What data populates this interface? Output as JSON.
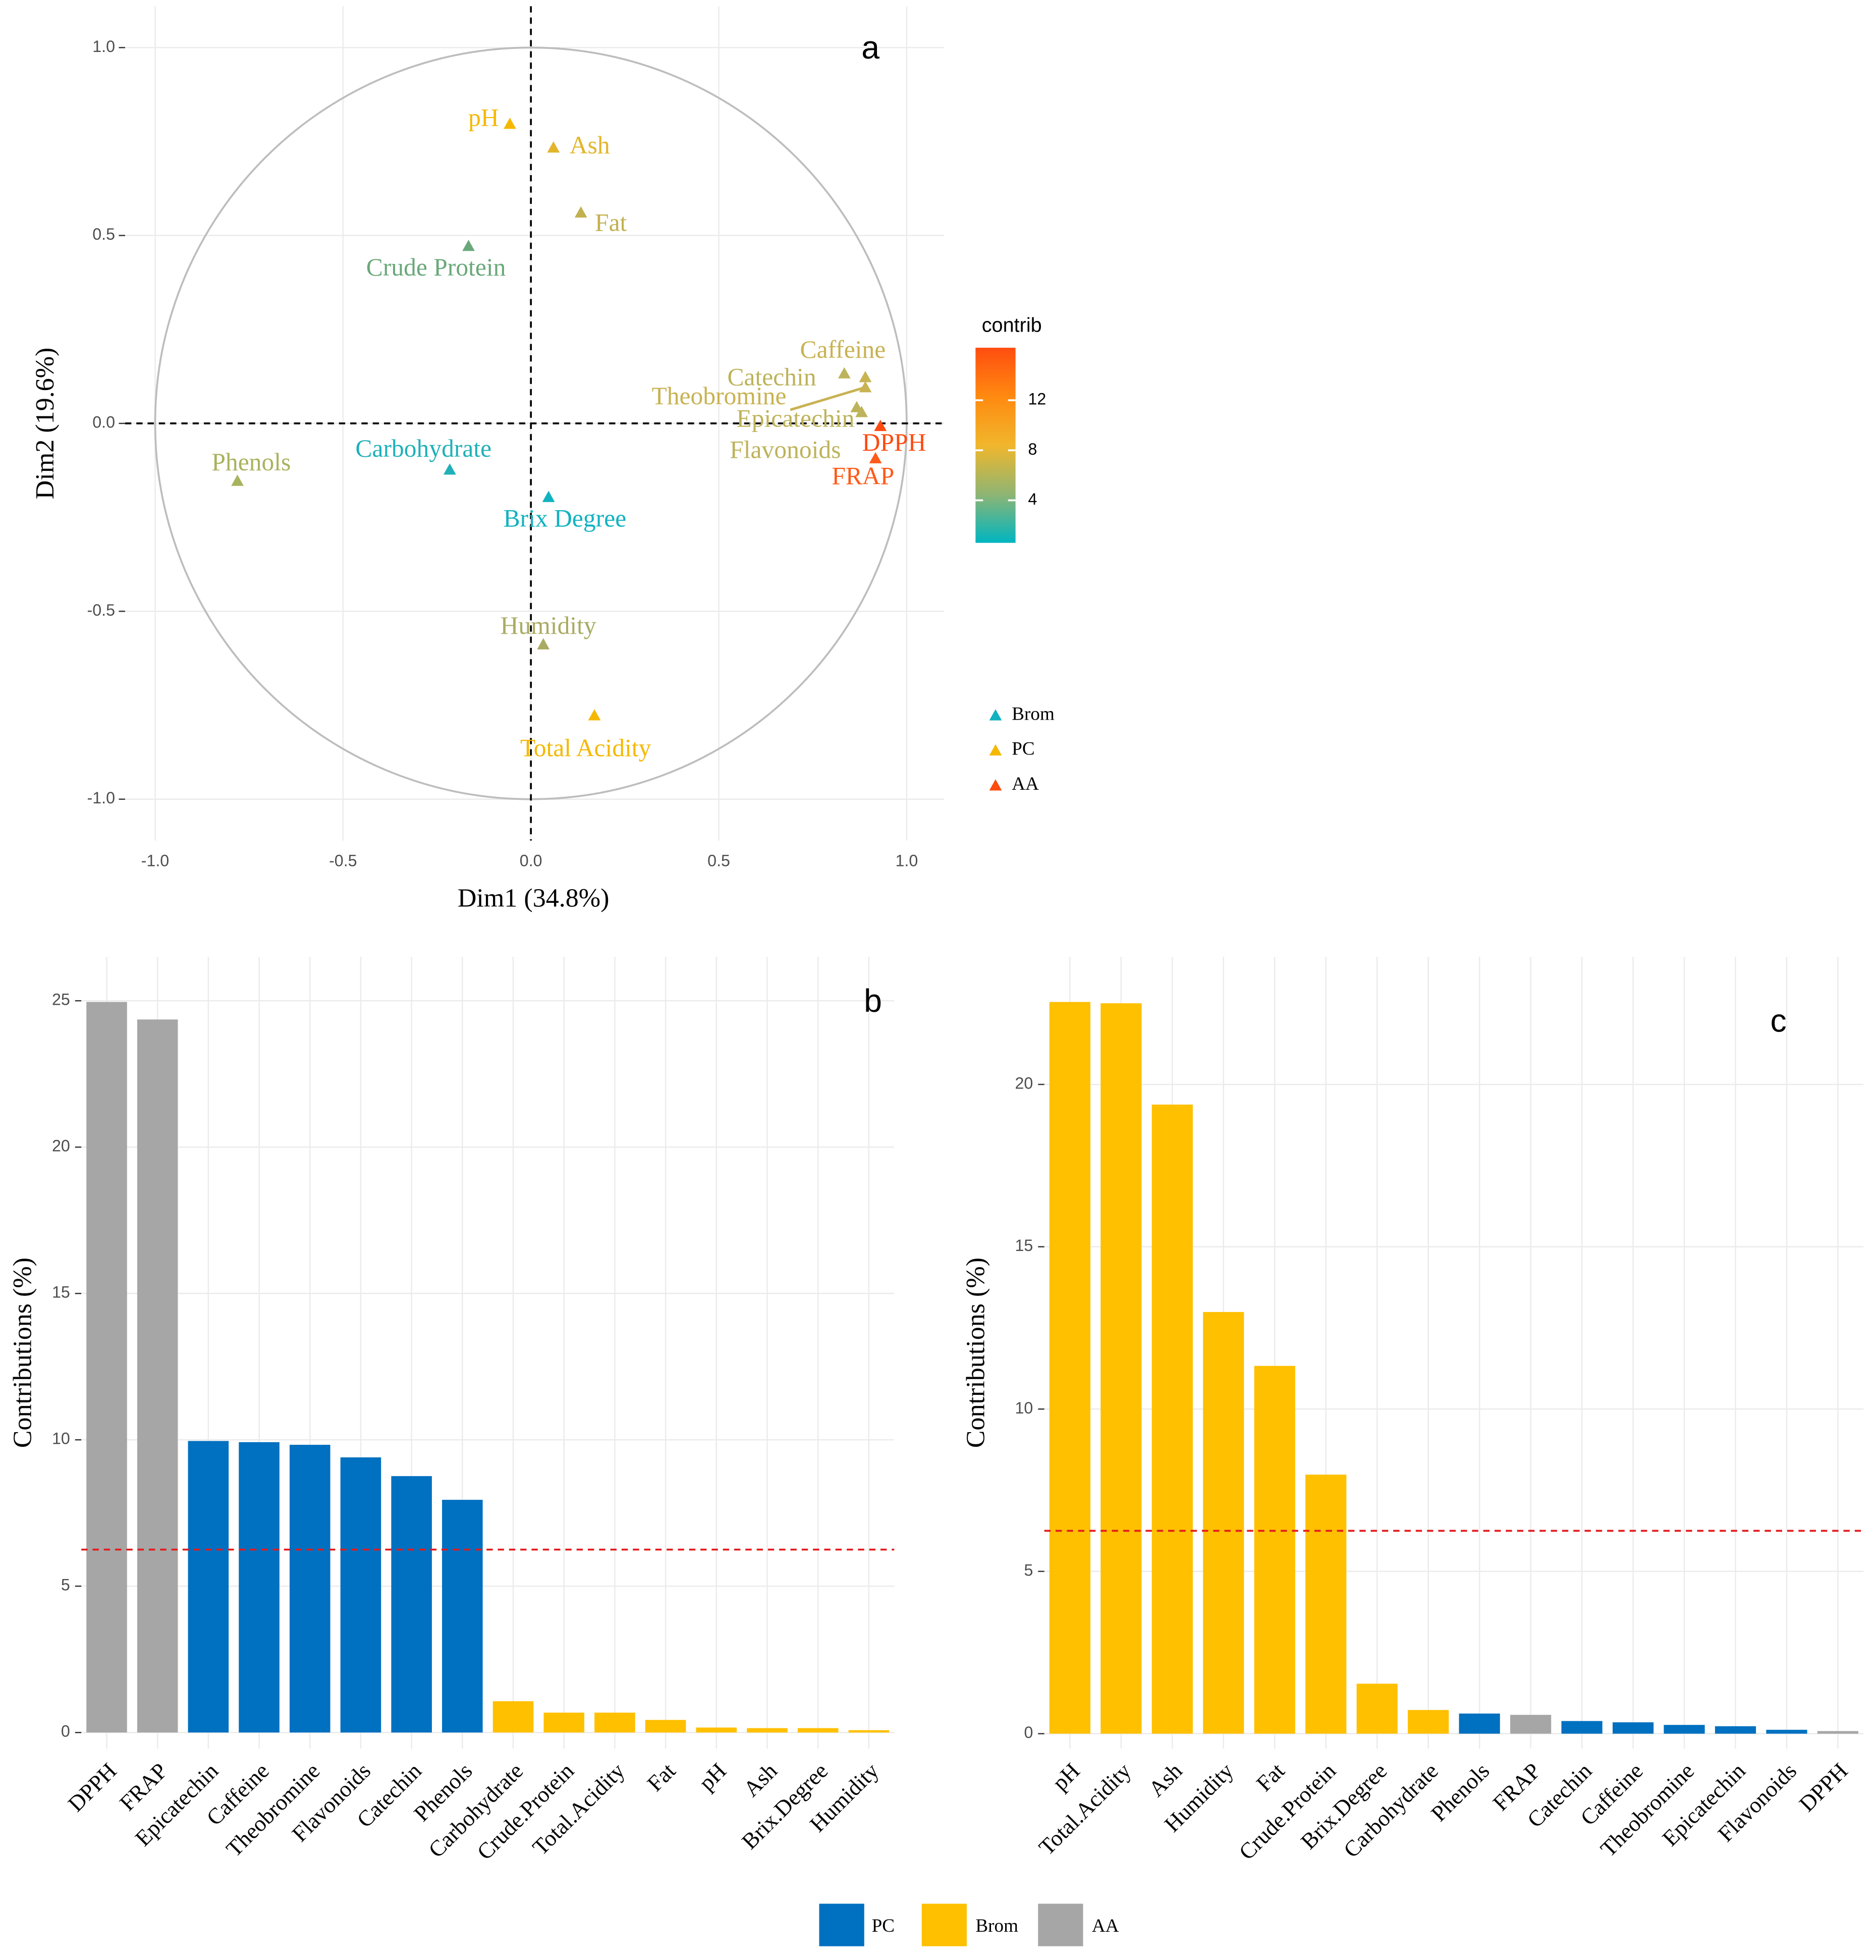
{
  "chart_data": [
    {
      "type": "scatter",
      "panel_label": "a",
      "xlabel": "Dim1 (34.8%)",
      "ylabel": "Dim2 (19.6%)",
      "xlim": [
        -1.08,
        1.1
      ],
      "ylim": [
        -1.11,
        1.11
      ],
      "xticks": [
        {
          "value": -1,
          "label": "-1.0"
        },
        -0.5,
        {
          "value": 0,
          "label": "0.0"
        },
        0.5,
        {
          "value": 1,
          "label": "1.0"
        }
      ],
      "yticks": [
        {
          "value": -1,
          "label": "-1.0"
        },
        -0.5,
        {
          "value": 0,
          "label": "0.0"
        },
        0.5,
        {
          "value": 1,
          "label": "1.0"
        }
      ],
      "labels": [
        "pH",
        "Ash",
        "Fat",
        "Crude Protein",
        "Caffeine",
        "Catechin",
        "Theobromine",
        "Epicatechin",
        "Flavonoids",
        "DPPH",
        "FRAP",
        "Phenols",
        "Carbohydrate",
        "Brix Degree",
        "Humidity",
        "Total Acidity"
      ],
      "x": [
        -0.056,
        0.06,
        0.133,
        -0.166,
        0.89,
        0.834,
        0.89,
        0.867,
        0.88,
        0.93,
        0.917,
        -0.781,
        -0.216,
        0.047,
        0.033,
        0.169
      ],
      "y": [
        0.797,
        0.734,
        0.561,
        0.472,
        0.123,
        0.133,
        0.096,
        0.043,
        0.03,
        -0.007,
        -0.093,
        -0.153,
        -0.123,
        -0.196,
        -0.588,
        -0.777
      ],
      "colors": [
        "#f5b800",
        "#e2b52a",
        "#c2b150",
        "#6aa87a",
        "#c8b252",
        "#bdb35a",
        "#c8b252",
        "#bdb35a",
        "#bdb35a",
        "#ff4a10",
        "#ff5a18",
        "#a9b25e",
        "#20b0b8",
        "#10b2c0",
        "#a9ab62",
        "#f5b800"
      ],
      "colorbar": {
        "title": "contrib",
        "lim": [
          0.6,
          16.2
        ],
        "ticks": [
          4,
          8,
          12
        ],
        "colors": [
          "#00b5c0",
          "#8fb573",
          "#f0b62c",
          "#ff8a10",
          "#ff4d10"
        ]
      },
      "shape_legend": [
        {
          "name": "Brom",
          "color": "#10b2c0"
        },
        {
          "name": "PC",
          "color": "#f5b800"
        },
        {
          "name": "AA",
          "color": "#ff4a10"
        }
      ]
    },
    {
      "type": "bar",
      "panel_label": "b",
      "ylabel": "Contributions (%)",
      "categories": [
        "DPPH",
        "FRAP",
        "Epicatechin",
        "Caffeine",
        "Theobromine",
        "Flavonoids",
        "Catechin",
        "Phenols",
        "Carbohydrate",
        "Crude.Protein",
        "Total.Acidity",
        "Fat",
        "pH",
        "Ash",
        "Brix.Degree",
        "Humidity"
      ],
      "values": [
        24.96,
        24.36,
        9.96,
        9.92,
        9.83,
        9.4,
        8.76,
        7.95,
        1.07,
        0.68,
        0.68,
        0.43,
        0.17,
        0.15,
        0.15,
        0.08
      ],
      "colors": [
        "#a6a6a6",
        "#a6a6a6",
        "#0070c0",
        "#0070c0",
        "#0070c0",
        "#0070c0",
        "#0070c0",
        "#0070c0",
        "#ffc000",
        "#ffc000",
        "#ffc000",
        "#ffc000",
        "#ffc000",
        "#ffc000",
        "#ffc000",
        "#ffc000"
      ],
      "reference_line": 6.25,
      "ylim": [
        -0.55,
        26.5
      ],
      "yticks": [
        0,
        5,
        10,
        15,
        20,
        25
      ],
      "legend": [
        {
          "name": "PC",
          "color": "#0070c0"
        },
        {
          "name": "Brom",
          "color": "#ffc000"
        },
        {
          "name": "AA",
          "color": "#a6a6a6"
        }
      ]
    },
    {
      "type": "bar",
      "panel_label": "c",
      "ylabel": "Contributions (%)",
      "categories": [
        "pH",
        "Total.Acidity",
        "Ash",
        "Humidity",
        "Fat",
        "Crude.Protein",
        "Brix.Degree",
        "Carbohydrate",
        "Phenols",
        "FRAP",
        "Catechin",
        "Caffeine",
        "Theobromine",
        "Epicatechin",
        "Flavonoids",
        "DPPH"
      ],
      "values": [
        22.54,
        22.5,
        19.38,
        12.99,
        11.33,
        7.98,
        1.54,
        0.73,
        0.62,
        0.58,
        0.39,
        0.35,
        0.27,
        0.23,
        0.12,
        0.08
      ],
      "colors": [
        "#ffc000",
        "#ffc000",
        "#ffc000",
        "#ffc000",
        "#ffc000",
        "#ffc000",
        "#ffc000",
        "#ffc000",
        "#0070c0",
        "#a6a6a6",
        "#0070c0",
        "#0070c0",
        "#0070c0",
        "#0070c0",
        "#0070c0",
        "#a6a6a6"
      ],
      "reference_line": 6.25,
      "ylim": [
        -0.46,
        23.93
      ],
      "yticks": [
        0,
        5,
        10,
        15,
        20
      ]
    }
  ]
}
